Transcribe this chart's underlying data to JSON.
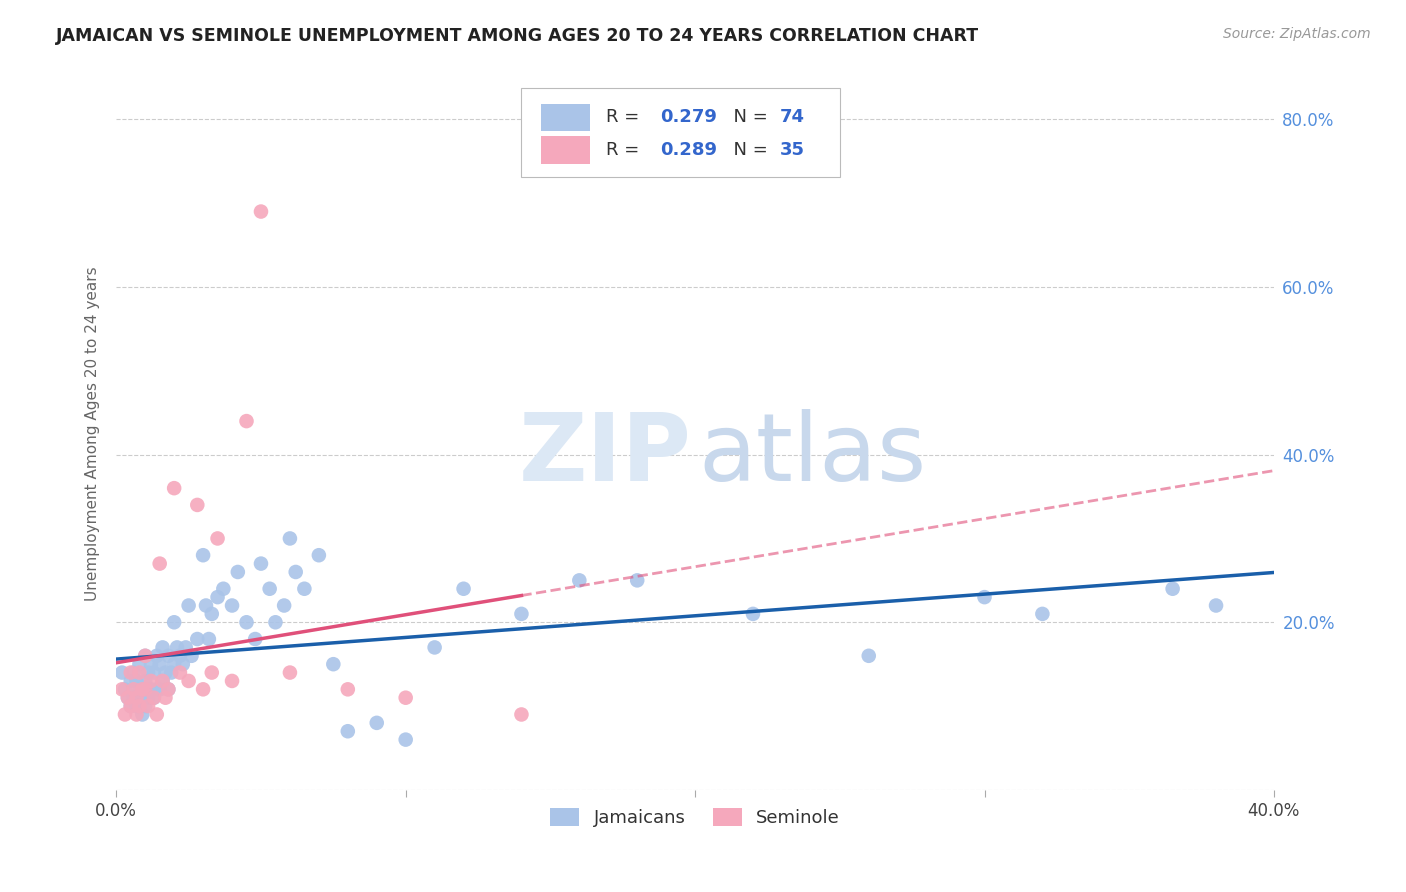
{
  "title": "JAMAICAN VS SEMINOLE UNEMPLOYMENT AMONG AGES 20 TO 24 YEARS CORRELATION CHART",
  "source": "Source: ZipAtlas.com",
  "ylabel": "Unemployment Among Ages 20 to 24 years",
  "xlim": [
    0.0,
    0.4
  ],
  "ylim": [
    0.0,
    0.85
  ],
  "yticks": [
    0.0,
    0.2,
    0.4,
    0.6,
    0.8
  ],
  "xtick_positions": [
    0.0,
    0.1,
    0.2,
    0.3,
    0.4
  ],
  "xtick_labels": [
    "0.0%",
    "",
    "",
    "",
    "40.0%"
  ],
  "jamaicans_R": "0.279",
  "jamaicans_N": "74",
  "seminole_R": "0.289",
  "seminole_N": "35",
  "jamaicans_color": "#aac4e8",
  "seminole_color": "#f5a8bc",
  "trend_jamaicans_color": "#1a5faa",
  "trend_seminole_color": "#e0507a",
  "watermark_zip_color": "#dce8f5",
  "watermark_atlas_color": "#c8d8ec",
  "jamaicans_x": [
    0.002,
    0.003,
    0.004,
    0.005,
    0.005,
    0.006,
    0.006,
    0.007,
    0.007,
    0.008,
    0.008,
    0.009,
    0.009,
    0.01,
    0.01,
    0.01,
    0.011,
    0.011,
    0.012,
    0.012,
    0.013,
    0.013,
    0.014,
    0.014,
    0.015,
    0.015,
    0.016,
    0.016,
    0.017,
    0.018,
    0.018,
    0.019,
    0.02,
    0.02,
    0.021,
    0.022,
    0.023,
    0.024,
    0.025,
    0.026,
    0.028,
    0.03,
    0.031,
    0.032,
    0.033,
    0.035,
    0.037,
    0.04,
    0.042,
    0.045,
    0.048,
    0.05,
    0.053,
    0.055,
    0.058,
    0.06,
    0.062,
    0.065,
    0.07,
    0.075,
    0.08,
    0.09,
    0.1,
    0.11,
    0.12,
    0.14,
    0.16,
    0.18,
    0.22,
    0.26,
    0.3,
    0.32,
    0.365,
    0.38
  ],
  "jamaicans_y": [
    0.14,
    0.12,
    0.11,
    0.13,
    0.1,
    0.14,
    0.11,
    0.13,
    0.1,
    0.15,
    0.12,
    0.11,
    0.09,
    0.16,
    0.13,
    0.1,
    0.14,
    0.11,
    0.15,
    0.12,
    0.14,
    0.11,
    0.16,
    0.12,
    0.15,
    0.12,
    0.17,
    0.13,
    0.14,
    0.16,
    0.12,
    0.14,
    0.2,
    0.15,
    0.17,
    0.16,
    0.15,
    0.17,
    0.22,
    0.16,
    0.18,
    0.28,
    0.22,
    0.18,
    0.21,
    0.23,
    0.24,
    0.22,
    0.26,
    0.2,
    0.18,
    0.27,
    0.24,
    0.2,
    0.22,
    0.3,
    0.26,
    0.24,
    0.28,
    0.15,
    0.07,
    0.08,
    0.06,
    0.17,
    0.24,
    0.21,
    0.25,
    0.25,
    0.21,
    0.16,
    0.23,
    0.21,
    0.24,
    0.22
  ],
  "seminole_x": [
    0.002,
    0.003,
    0.004,
    0.005,
    0.005,
    0.006,
    0.007,
    0.007,
    0.008,
    0.008,
    0.009,
    0.01,
    0.01,
    0.011,
    0.012,
    0.013,
    0.014,
    0.015,
    0.016,
    0.017,
    0.018,
    0.02,
    0.022,
    0.025,
    0.028,
    0.03,
    0.033,
    0.035,
    0.04,
    0.045,
    0.05,
    0.06,
    0.08,
    0.1,
    0.14
  ],
  "seminole_y": [
    0.12,
    0.09,
    0.11,
    0.14,
    0.1,
    0.12,
    0.09,
    0.11,
    0.14,
    0.1,
    0.12,
    0.16,
    0.12,
    0.1,
    0.13,
    0.11,
    0.09,
    0.27,
    0.13,
    0.11,
    0.12,
    0.36,
    0.14,
    0.13,
    0.34,
    0.12,
    0.14,
    0.3,
    0.13,
    0.44,
    0.69,
    0.14,
    0.12,
    0.11,
    0.09
  ]
}
